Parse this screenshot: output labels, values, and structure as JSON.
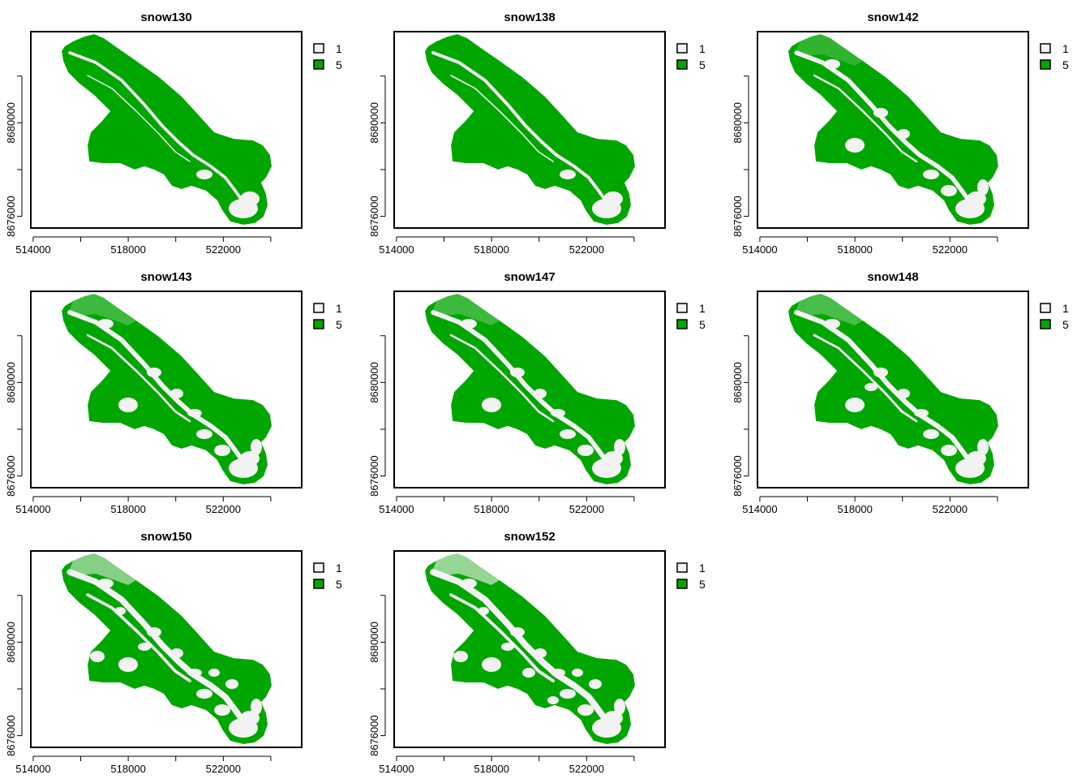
{
  "colors": {
    "snow_free": "#00a600",
    "snow_covered": "#f2f2f2",
    "frame": "#000000",
    "legend_1_fill": "#f2f2f2",
    "legend_5_fill": "#00a600"
  },
  "legend": [
    {
      "label": "1",
      "color": "#f2f2f2"
    },
    {
      "label": "5",
      "color": "#00a600"
    }
  ],
  "axes": {
    "x_ticks": [
      514000,
      516000,
      518000,
      520000,
      522000,
      524000
    ],
    "x_tick_labels": [
      "514000",
      "",
      "518000",
      "",
      "522000",
      ""
    ],
    "y_ticks": [
      8676000,
      8678000,
      8680000,
      8682000
    ],
    "y_tick_labels": [
      "8676000",
      "",
      "8680000",
      ""
    ],
    "xlim": [
      513900,
      525300
    ],
    "ylim": [
      8675500,
      8683900
    ]
  },
  "panels": [
    {
      "title": "snow130",
      "snow_fraction": 0.05
    },
    {
      "title": "snow138",
      "snow_fraction": 0.07
    },
    {
      "title": "snow142",
      "snow_fraction": 0.18
    },
    {
      "title": "snow143",
      "snow_fraction": 0.2
    },
    {
      "title": "snow147",
      "snow_fraction": 0.2
    },
    {
      "title": "snow148",
      "snow_fraction": 0.22
    },
    {
      "title": "snow150",
      "snow_fraction": 0.32
    },
    {
      "title": "snow152",
      "snow_fraction": 0.35
    }
  ]
}
